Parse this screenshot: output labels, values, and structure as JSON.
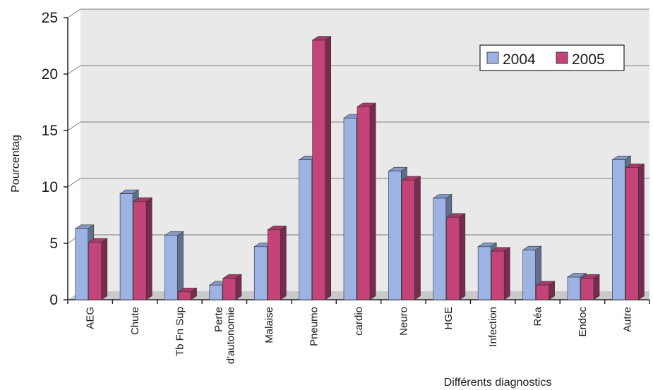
{
  "chart_data": {
    "type": "bar",
    "style": "3d-clustered-column",
    "title": "",
    "xlabel": "Différents diagnostics",
    "ylabel": "Pourcentag",
    "ylim": [
      0,
      25
    ],
    "yticks": [
      0,
      5,
      10,
      15,
      20,
      25
    ],
    "grid": true,
    "legend_position": "top-right",
    "categories": [
      "AEG",
      "Chute",
      "Tb Fn Sup",
      "Perte d'autonomie",
      "Malaise",
      "Pneumo",
      "cardio",
      "Neuro",
      "HGE",
      "Infection",
      "Réa",
      "Endoc",
      "Autre"
    ],
    "category_lines": [
      [
        "AEG"
      ],
      [
        "Chute"
      ],
      [
        "Tb Fn Sup"
      ],
      [
        "Perte",
        "d'autonomie"
      ],
      [
        "Malaise"
      ],
      [
        "Pneumo"
      ],
      [
        "cardio"
      ],
      [
        "Neuro"
      ],
      [
        "HGE"
      ],
      [
        "Infection"
      ],
      [
        "Réa"
      ],
      [
        "Endoc"
      ],
      [
        "Autre"
      ]
    ],
    "series": [
      {
        "name": "2004",
        "color": "#9db3e6",
        "values": [
          6.3,
          9.4,
          5.7,
          1.3,
          4.7,
          12.4,
          16.1,
          11.4,
          9.0,
          4.7,
          4.4,
          2.0,
          12.4
        ]
      },
      {
        "name": "2005",
        "color": "#c4447a",
        "values": [
          5.1,
          8.7,
          0.7,
          1.9,
          6.2,
          23.0,
          17.1,
          10.6,
          7.3,
          4.3,
          1.3,
          1.9,
          11.7
        ]
      }
    ]
  }
}
